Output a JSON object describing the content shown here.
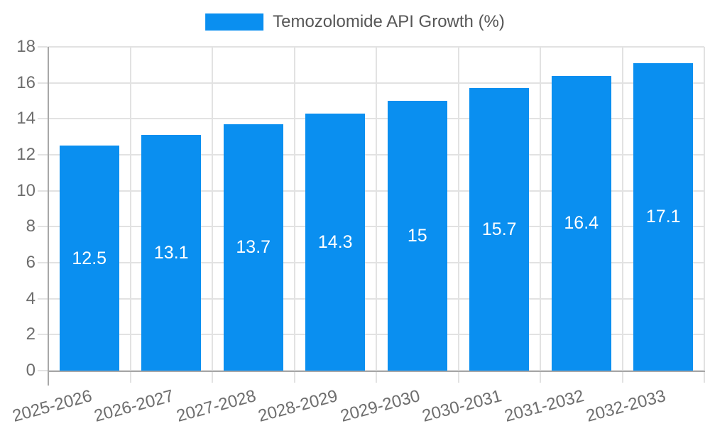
{
  "legend": {
    "label": "Temozolomide API Growth (%)",
    "position": "top"
  },
  "chart_data": {
    "type": "bar",
    "title": "",
    "xlabel": "",
    "ylabel": "",
    "categories": [
      "2025-2026",
      "2026-2027",
      "2027-2028",
      "2028-2029",
      "2029-2030",
      "2030-2031",
      "2031-2032",
      "2032-2033"
    ],
    "series": [
      {
        "name": "Temozolomide API Growth (%)",
        "values": [
          12.5,
          13.1,
          13.7,
          14.3,
          15,
          15.7,
          16.4,
          17.1
        ],
        "value_labels": [
          "12.5",
          "13.1",
          "13.7",
          "14.3",
          "15",
          "15.7",
          "16.4",
          "17.1"
        ]
      }
    ],
    "ylim": [
      0,
      18
    ],
    "yticks": [
      0,
      2,
      4,
      6,
      8,
      10,
      12,
      14,
      16,
      18
    ],
    "grid": true,
    "legend_position": "top",
    "value_labels_inside_bars": true,
    "x_labels_rotation_deg": -15
  },
  "colors": {
    "bar": "#0a8ff0",
    "grid": "#e2e2e2",
    "axis": "#a8a8a8",
    "tick_label": "#6d6d6d",
    "legend_text": "#565656",
    "value_label": "#ffffff",
    "background": "#ffffff"
  }
}
